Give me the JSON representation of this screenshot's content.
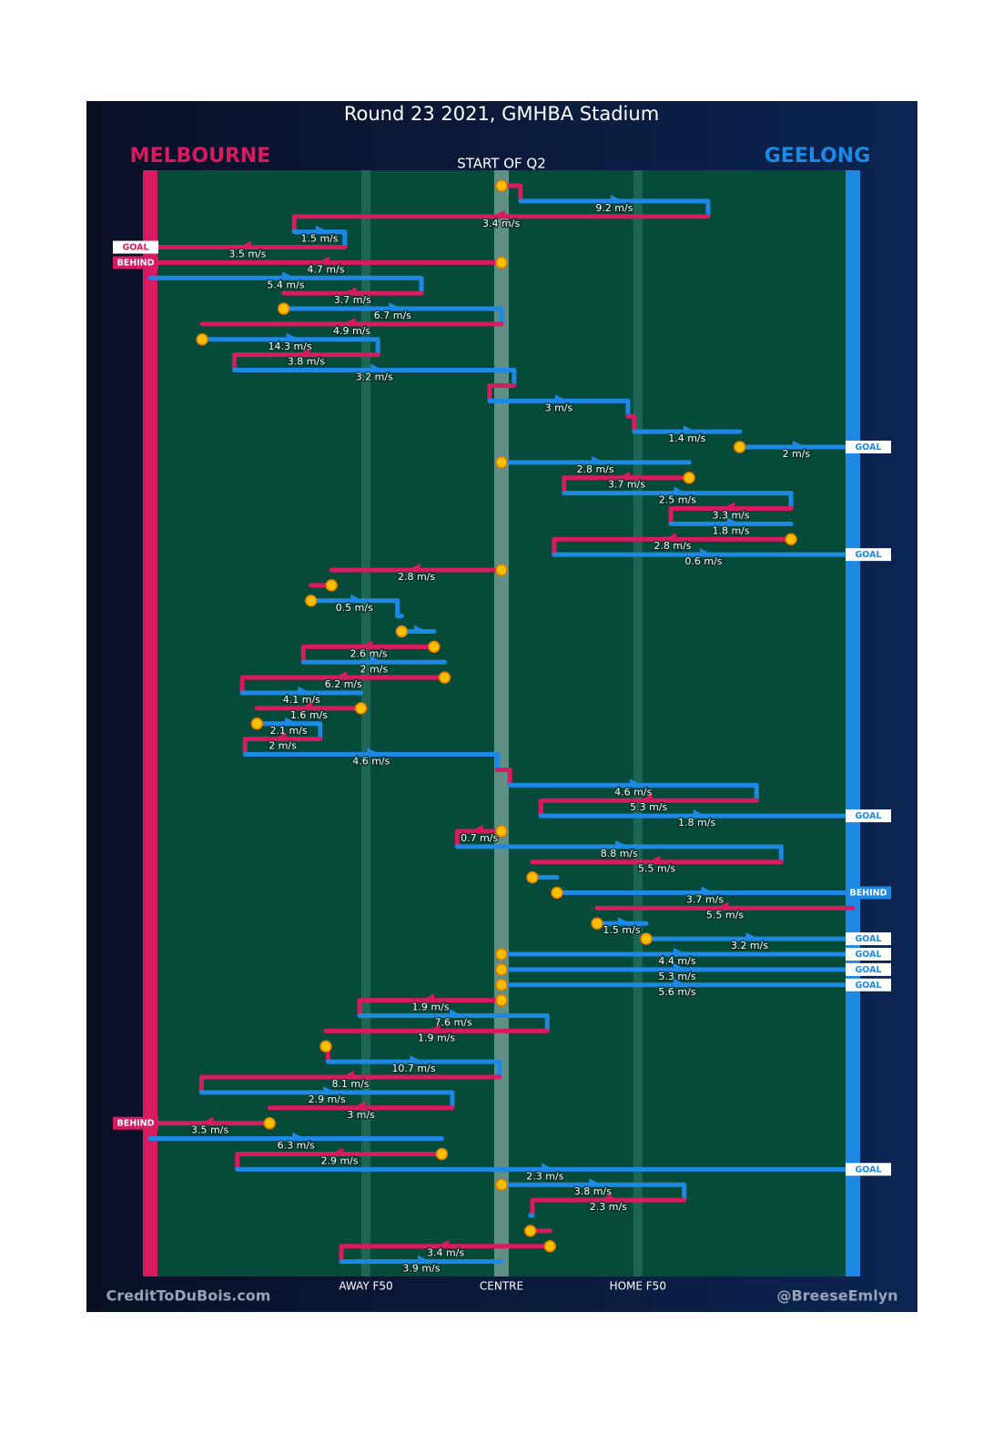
{
  "chart_data": {
    "type": "possession-chain",
    "title": "Round 23 2021, GMHBA Stadium",
    "subtitle": "START OF Q2",
    "credits": [
      "CreditToDuBois.com",
      "@BreeseEmlyn"
    ],
    "teams": [
      {
        "name": "MELBOURNE",
        "color": "#d81b60"
      },
      {
        "name": "GEELONG",
        "color": "#1e88e5"
      }
    ],
    "xlim": [
      0,
      100
    ],
    "xticks": [
      {
        "value": 30.7,
        "label": "AWAY F50"
      },
      {
        "value": 50,
        "label": "CENTRE"
      },
      {
        "value": 69.4,
        "label": "HOME F50"
      }
    ],
    "segments": [
      {
        "team": 0,
        "from": 50,
        "to": 52.7,
        "stoppage": true
      },
      {
        "team": 1,
        "from": 52.7,
        "to": 79.4,
        "speed": 9.2,
        "speed_label": "9.2 m/s"
      },
      {
        "team": 0,
        "from": 79.4,
        "to": 20.5,
        "speed": 3.4,
        "speed_label": "3.4 m/s"
      },
      {
        "team": 1,
        "from": 20.5,
        "to": 27.7,
        "speed": 1.5,
        "speed_label": "1.5 m/s"
      },
      {
        "team": 0,
        "from": 27.7,
        "to": 0,
        "speed": 3.5,
        "speed_label": "3.5 m/s",
        "result": "GOAL"
      },
      {
        "team": 0,
        "from": 50,
        "to": 0,
        "speed": 4.7,
        "speed_label": "4.7 m/s",
        "stoppage": true,
        "result": "BEHIND"
      },
      {
        "team": 1,
        "from": 0,
        "to": 38.6,
        "speed": 5.4,
        "speed_label": "5.4 m/s"
      },
      {
        "team": 0,
        "from": 38.6,
        "to": 19.0,
        "speed": 3.7,
        "speed_label": "3.7 m/s"
      },
      {
        "team": 1,
        "from": 19.0,
        "to": 50,
        "speed": 6.7,
        "speed_label": "6.7 m/s",
        "stoppage": true
      },
      {
        "team": 0,
        "from": 50,
        "to": 7.4,
        "speed": 4.9,
        "speed_label": "4.9 m/s"
      },
      {
        "team": 1,
        "from": 7.4,
        "to": 32.4,
        "speed": 14.3,
        "speed_label": "14.3 m/s",
        "stoppage": true
      },
      {
        "team": 0,
        "from": 32.4,
        "to": 12.0,
        "speed": 3.8,
        "speed_label": "3.8 m/s"
      },
      {
        "team": 1,
        "from": 12.0,
        "to": 51.8,
        "speed": 3.2,
        "speed_label": "3.2 m/s"
      },
      {
        "team": 0,
        "from": 51.8,
        "to": 48.3
      },
      {
        "team": 1,
        "from": 48.3,
        "to": 68.0,
        "speed": 3,
        "speed_label": "3 m/s"
      },
      {
        "team": 0,
        "from": 68.0,
        "to": 68.9
      },
      {
        "team": 1,
        "from": 68.9,
        "to": 83.9,
        "speed": 1.4,
        "speed_label": "1.4 m/s"
      },
      {
        "team": 1,
        "from": 83.9,
        "to": 100,
        "speed": 2,
        "speed_label": "2 m/s",
        "stoppage": true,
        "result": "GOAL"
      },
      {
        "team": 1,
        "from": 50,
        "to": 76.7,
        "speed": 2.8,
        "speed_label": "2.8 m/s",
        "stoppage": true
      },
      {
        "team": 0,
        "from": 76.7,
        "to": 58.9,
        "speed": 3.7,
        "speed_label": "3.7 m/s",
        "stoppage": true
      },
      {
        "team": 1,
        "from": 58.9,
        "to": 91.2,
        "speed": 2.5,
        "speed_label": "2.5 m/s"
      },
      {
        "team": 0,
        "from": 91.2,
        "to": 74.1,
        "speed": 3.3,
        "speed_label": "3.3 m/s"
      },
      {
        "team": 1,
        "from": 74.1,
        "to": 91.2,
        "speed": 1.8,
        "speed_label": "1.8 m/s"
      },
      {
        "team": 0,
        "from": 91.2,
        "to": 57.5,
        "speed": 2.8,
        "speed_label": "2.8 m/s",
        "stoppage": true
      },
      {
        "team": 1,
        "from": 57.5,
        "to": 100,
        "speed": 0.6,
        "speed_label": "0.6 m/s",
        "result": "GOAL"
      },
      {
        "team": 0,
        "from": 50,
        "to": 25.8,
        "speed": 2.8,
        "speed_label": "2.8 m/s",
        "stoppage": true
      },
      {
        "team": 0,
        "from": 25.8,
        "to": 22.9,
        "stoppage": true
      },
      {
        "team": 1,
        "from": 22.9,
        "to": 35.2,
        "speed": 0.5,
        "speed_label": "0.5 m/s",
        "stoppage": true
      },
      {
        "team": 1,
        "from": 35.2,
        "to": 35.8
      },
      {
        "team": 1,
        "from": 35.8,
        "to": 40.4,
        "stoppage": true
      },
      {
        "team": 0,
        "from": 40.4,
        "to": 21.8,
        "speed": 2.6,
        "speed_label": "2.6 m/s",
        "stoppage": true
      },
      {
        "team": 1,
        "from": 21.8,
        "to": 41.9,
        "speed": 2,
        "speed_label": "2 m/s"
      },
      {
        "team": 0,
        "from": 41.9,
        "to": 13.1,
        "speed": 6.2,
        "speed_label": "6.2 m/s",
        "stoppage": true
      },
      {
        "team": 1,
        "from": 13.1,
        "to": 30.0,
        "speed": 4.1,
        "speed_label": "4.1 m/s"
      },
      {
        "team": 0,
        "from": 30.0,
        "to": 15.2,
        "speed": 1.6,
        "speed_label": "1.6 m/s",
        "stoppage": true
      },
      {
        "team": 1,
        "from": 15.2,
        "to": 24.2,
        "speed": 2.1,
        "speed_label": "2.1 m/s",
        "stoppage": true
      },
      {
        "team": 0,
        "from": 24.2,
        "to": 13.5,
        "speed": 2,
        "speed_label": "2 m/s"
      },
      {
        "team": 1,
        "from": 13.5,
        "to": 49.4,
        "speed": 4.6,
        "speed_label": "4.6 m/s"
      },
      {
        "team": 0,
        "from": 49.4,
        "to": 51.2
      },
      {
        "team": 1,
        "from": 51.2,
        "to": 86.3,
        "speed": 4.6,
        "speed_label": "4.6 m/s"
      },
      {
        "team": 0,
        "from": 86.3,
        "to": 55.6,
        "speed": 5.3,
        "speed_label": "5.3 m/s"
      },
      {
        "team": 1,
        "from": 55.6,
        "to": 100,
        "speed": 1.8,
        "speed_label": "1.8 m/s",
        "result": "GOAL"
      },
      {
        "team": 0,
        "from": 50,
        "to": 43.7,
        "speed": 0.7,
        "speed_label": "0.7 m/s",
        "stoppage": true
      },
      {
        "team": 1,
        "from": 43.7,
        "to": 89.8,
        "speed": 8.8,
        "speed_label": "8.8 m/s"
      },
      {
        "team": 0,
        "from": 89.8,
        "to": 54.4,
        "speed": 5.5,
        "speed_label": "5.5 m/s"
      },
      {
        "team": 1,
        "from": 54.4,
        "to": 57.9,
        "stoppage": true
      },
      {
        "team": 1,
        "from": 57.9,
        "to": 100,
        "speed": 3.7,
        "speed_label": "3.7 m/s",
        "stoppage": true,
        "result": "BEHIND"
      },
      {
        "team": 0,
        "from": 100,
        "to": 63.6,
        "speed": 5.5,
        "speed_label": "5.5 m/s"
      },
      {
        "team": 1,
        "from": 63.6,
        "to": 70.6,
        "speed": 1.5,
        "speed_label": "1.5 m/s",
        "stoppage": true
      },
      {
        "team": 1,
        "from": 70.6,
        "to": 100,
        "speed": 3.2,
        "speed_label": "3.2 m/s",
        "stoppage": true,
        "result": "GOAL"
      },
      {
        "team": 1,
        "from": 50,
        "to": 100,
        "speed": 4.4,
        "speed_label": "4.4 m/s",
        "stoppage": true,
        "result": "GOAL"
      },
      {
        "team": 1,
        "from": 50,
        "to": 100,
        "speed": 5.3,
        "speed_label": "5.3 m/s",
        "stoppage": true,
        "result": "GOAL"
      },
      {
        "team": 1,
        "from": 50,
        "to": 100,
        "speed": 5.6,
        "speed_label": "5.6 m/s",
        "stoppage": true,
        "result": "GOAL"
      },
      {
        "team": 0,
        "from": 50,
        "to": 29.8,
        "speed": 1.9,
        "speed_label": "1.9 m/s",
        "stoppage": true
      },
      {
        "team": 1,
        "from": 29.8,
        "to": 56.5,
        "speed": 7.6,
        "speed_label": "7.6 m/s"
      },
      {
        "team": 0,
        "from": 56.5,
        "to": 25.0,
        "speed": 1.9,
        "speed_label": "1.9 m/s"
      },
      {
        "team": 0,
        "from": 25.0,
        "to": 25.3,
        "stoppage": true
      },
      {
        "team": 1,
        "from": 25.3,
        "to": 49.7,
        "speed": 10.7,
        "speed_label": "10.7 m/s"
      },
      {
        "team": 0,
        "from": 49.7,
        "to": 7.3,
        "speed": 8.1,
        "speed_label": "8.1 m/s"
      },
      {
        "team": 1,
        "from": 7.3,
        "to": 43.0,
        "speed": 2.9,
        "speed_label": "2.9 m/s"
      },
      {
        "team": 0,
        "from": 43.0,
        "to": 17.0,
        "speed": 3,
        "speed_label": "3 m/s"
      },
      {
        "team": 0,
        "from": 17.0,
        "to": 0,
        "speed": 3.5,
        "speed_label": "3.5 m/s",
        "stoppage": true,
        "result": "BEHIND"
      },
      {
        "team": 1,
        "from": 0,
        "to": 41.5,
        "speed": 6.3,
        "speed_label": "6.3 m/s"
      },
      {
        "team": 0,
        "from": 41.5,
        "to": 12.4,
        "speed": 2.9,
        "speed_label": "2.9 m/s",
        "stoppage": true
      },
      {
        "team": 1,
        "from": 12.4,
        "to": 100,
        "speed": 2.3,
        "speed_label": "2.3 m/s",
        "result": "GOAL"
      },
      {
        "team": 1,
        "from": 50,
        "to": 76.0,
        "speed": 3.8,
        "speed_label": "3.8 m/s",
        "stoppage": true
      },
      {
        "team": 0,
        "from": 76.0,
        "to": 54.4,
        "speed": 2.3,
        "speed_label": "2.3 m/s"
      },
      {
        "team": 1,
        "from": 54.4,
        "to": 54.1
      },
      {
        "team": 0,
        "from": 54.1,
        "to": 56.9,
        "stoppage": true
      },
      {
        "team": 0,
        "from": 56.9,
        "to": 27.2,
        "speed": 3.4,
        "speed_label": "3.4 m/s",
        "stoppage": true
      },
      {
        "team": 1,
        "from": 27.2,
        "to": 50,
        "speed": 3.9,
        "speed_label": "3.9 m/s"
      }
    ]
  }
}
